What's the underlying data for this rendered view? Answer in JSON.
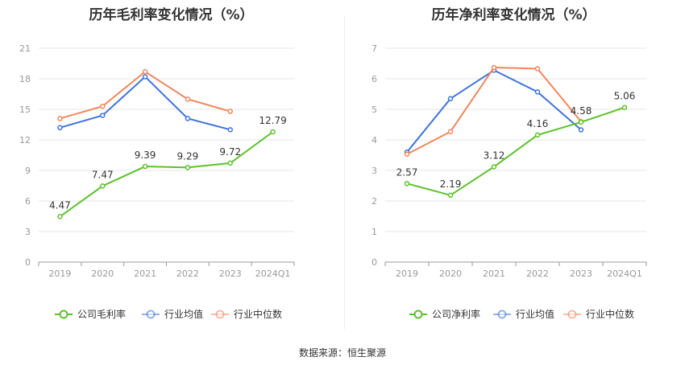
{
  "left_title": "历年毛利率变化情况（%）",
  "right_title": "历年净利率变化情况（%）",
  "source": "数据来源：恒生聚源",
  "colors": {
    "company": "#5cc12b",
    "avg": "#3f74d9",
    "median": "#f0875e",
    "grid": "#e6e6e6",
    "axis": "#999999",
    "text": "#999999"
  },
  "chart_data": [
    {
      "type": "line",
      "title": "历年毛利率变化情况（%）",
      "categories": [
        "2019",
        "2020",
        "2021",
        "2022",
        "2023",
        "2024Q1"
      ],
      "ylim": [
        0,
        21
      ],
      "yticks": [
        "0",
        "3",
        "6",
        "9",
        "12",
        "15",
        "18",
        "21"
      ],
      "legend_position": "bottom",
      "series": [
        {
          "name": "公司毛利率",
          "values": [
            4.47,
            7.47,
            9.39,
            9.29,
            9.72,
            12.79
          ],
          "labels": [
            "4.47",
            "7.47",
            "9.39",
            "9.29",
            "9.72",
            "12.79"
          ]
        },
        {
          "name": "行业均值",
          "values": [
            13.2,
            14.4,
            18.2,
            14.1,
            13.0,
            null
          ]
        },
        {
          "name": "行业中位数",
          "values": [
            14.1,
            15.3,
            18.7,
            16.0,
            14.8,
            null
          ]
        }
      ]
    },
    {
      "type": "line",
      "title": "历年净利率变化情况（%）",
      "categories": [
        "2019",
        "2020",
        "2021",
        "2022",
        "2023",
        "2024Q1"
      ],
      "ylim": [
        0,
        7
      ],
      "yticks": [
        "0",
        "1",
        "2",
        "3",
        "4",
        "5",
        "6",
        "7"
      ],
      "legend_position": "bottom",
      "series": [
        {
          "name": "公司净利率",
          "values": [
            2.57,
            2.19,
            3.12,
            4.16,
            4.58,
            5.06
          ],
          "labels": [
            "2.57",
            "2.19",
            "3.12",
            "4.16",
            "4.58",
            "5.06"
          ]
        },
        {
          "name": "行业均值",
          "values": [
            3.6,
            5.35,
            6.28,
            5.57,
            4.33,
            null
          ]
        },
        {
          "name": "行业中位数",
          "values": [
            3.53,
            4.27,
            6.37,
            6.33,
            4.6,
            null
          ]
        }
      ]
    }
  ]
}
